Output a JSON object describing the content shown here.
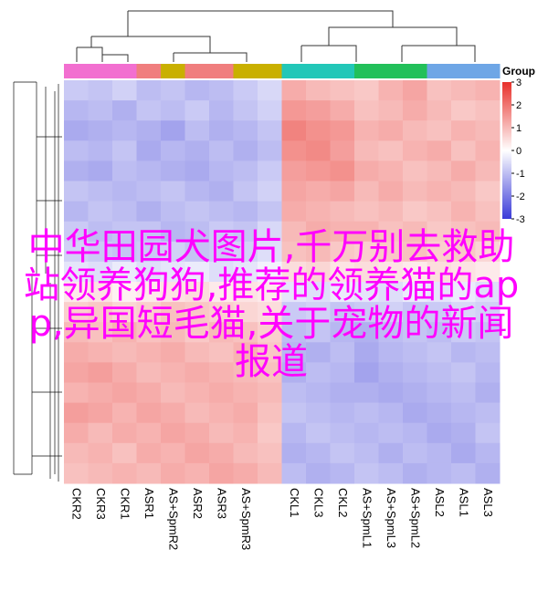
{
  "chart_data": {
    "type": "heatmap",
    "categories": [
      "CKR2",
      "CKR3",
      "CKR1",
      "ASR1",
      "AS+SpmR2",
      "ASR2",
      "ASR3",
      "AS+SpmR3",
      null,
      "CKL1",
      "CKL3",
      "CKL2",
      "AS+SpmL1",
      "AS+SpmL3",
      "AS+SpmL2",
      "ASL2",
      "ASL1",
      "ASL3"
    ],
    "group_colors": [
      "#f26fd0",
      "#f26fd0",
      "#f26fd0",
      "#f07e7e",
      "#c9b000",
      "#f07e7e",
      "#f07e7e",
      "#c9b000",
      "#c9b000",
      "#22c7b8",
      "#22c7b8",
      "#22c7b8",
      "#22c05a",
      "#22c05a",
      "#22c05a",
      "#6ea6e6",
      "#6ea6e6",
      "#6ea6e6"
    ],
    "legend_title": "Group",
    "zlim": [
      -3,
      3
    ],
    "zticks": [
      3,
      2,
      1,
      0,
      -1,
      -2,
      -3
    ],
    "low_color": "#3a3ad8",
    "mid_color": "#ffffff",
    "high_color": "#e8302a",
    "annotation": "中华田园犬图片,千万别去救助站领养狗狗,推荐的领养猫的app,异国短毛猫,关于宠物的新闻报道",
    "values": [
      [
        -0.8,
        -0.9,
        -0.7,
        -1.0,
        -0.9,
        -1.1,
        -1.0,
        -0.8,
        -0.6,
        1.2,
        1.0,
        0.9,
        0.8,
        1.1,
        1.3,
        0.9,
        1.0,
        1.1
      ],
      [
        -1.1,
        -1.0,
        -1.2,
        -0.9,
        -1.0,
        -0.8,
        -1.1,
        -0.9,
        -0.7,
        1.5,
        1.4,
        1.2,
        0.9,
        1.0,
        1.2,
        1.0,
        0.8,
        0.9
      ],
      [
        -1.3,
        -1.2,
        -1.1,
        -1.2,
        -1.4,
        -1.0,
        -1.2,
        -1.1,
        -0.9,
        1.8,
        1.6,
        1.5,
        1.1,
        1.2,
        1.0,
        0.9,
        1.1,
        1.0
      ],
      [
        -1.0,
        -1.1,
        -0.9,
        -1.3,
        -1.1,
        -1.2,
        -1.0,
        -1.2,
        -1.0,
        1.6,
        1.7,
        1.4,
        1.0,
        0.9,
        1.1,
        1.2,
        0.9,
        1.1
      ],
      [
        -1.2,
        -1.3,
        -1.0,
        -1.1,
        -1.2,
        -1.3,
        -1.1,
        -1.0,
        -0.8,
        1.4,
        1.5,
        1.6,
        1.2,
        1.1,
        0.9,
        1.0,
        1.2,
        1.0
      ],
      [
        -0.9,
        -1.0,
        -1.1,
        -1.0,
        -0.9,
        -1.1,
        -1.2,
        -0.9,
        -0.7,
        1.3,
        1.2,
        1.3,
        1.0,
        1.2,
        1.0,
        1.1,
        1.0,
        0.8
      ],
      [
        -1.1,
        -0.9,
        -1.0,
        -1.2,
        -1.0,
        -0.9,
        -1.0,
        -1.1,
        -0.9,
        1.2,
        1.1,
        1.0,
        0.9,
        1.0,
        0.8,
        0.9,
        1.1,
        0.9
      ],
      [
        -0.8,
        -1.0,
        -0.9,
        -0.9,
        -1.1,
        -1.0,
        -0.8,
        -0.9,
        -0.6,
        1.0,
        1.2,
        1.1,
        1.1,
        0.9,
        1.0,
        0.8,
        0.9,
        1.0
      ],
      [
        -0.7,
        -0.8,
        -0.9,
        -0.8,
        -0.7,
        -0.9,
        -0.8,
        -0.7,
        -0.5,
        0.9,
        1.0,
        0.8,
        0.7,
        0.8,
        0.9,
        0.7,
        0.8,
        0.6
      ],
      [
        -0.4,
        -0.5,
        -0.3,
        -0.5,
        -0.4,
        -0.3,
        -0.5,
        -0.4,
        -0.2,
        0.5,
        0.6,
        0.4,
        0.5,
        0.4,
        0.3,
        0.5,
        0.4,
        0.3
      ],
      [
        0.3,
        0.4,
        0.2,
        0.3,
        0.4,
        0.5,
        0.3,
        0.4,
        0.3,
        -0.4,
        -0.5,
        -0.3,
        -0.4,
        -0.5,
        -0.3,
        -0.4,
        -0.3,
        -0.5
      ],
      [
        0.7,
        0.8,
        0.6,
        0.7,
        0.9,
        0.8,
        0.7,
        0.6,
        0.5,
        -0.8,
        -0.7,
        -0.9,
        -0.8,
        -0.7,
        -0.9,
        -0.8,
        -0.6,
        -0.7
      ],
      [
        1.0,
        0.9,
        1.1,
        0.9,
        1.0,
        0.8,
        1.0,
        0.9,
        0.7,
        -1.0,
        -0.9,
        -1.1,
        -1.2,
        -1.0,
        -0.9,
        -1.0,
        -0.8,
        -0.9
      ],
      [
        1.2,
        1.1,
        1.0,
        1.1,
        1.2,
        1.0,
        0.9,
        1.1,
        0.8,
        -1.1,
        -1.2,
        -1.0,
        -1.3,
        -1.1,
        -1.0,
        -0.9,
        -1.1,
        -1.0
      ],
      [
        1.3,
        1.4,
        1.2,
        1.0,
        1.1,
        1.2,
        1.1,
        1.0,
        0.9,
        -1.2,
        -1.0,
        -1.1,
        -1.4,
        -1.2,
        -1.1,
        -1.0,
        -0.9,
        -1.1
      ],
      [
        1.1,
        1.2,
        1.3,
        1.2,
        1.0,
        1.1,
        1.2,
        1.1,
        1.0,
        -1.0,
        -1.1,
        -1.2,
        -1.2,
        -1.3,
        -1.2,
        -1.1,
        -1.0,
        -1.2
      ],
      [
        1.4,
        1.3,
        1.1,
        1.3,
        1.2,
        1.0,
        1.1,
        1.2,
        0.9,
        -0.9,
        -1.0,
        -1.1,
        -1.0,
        -1.1,
        -1.3,
        -1.2,
        -1.1,
        -1.0
      ],
      [
        1.2,
        1.0,
        1.2,
        1.1,
        1.3,
        1.2,
        1.0,
        1.1,
        0.8,
        -1.1,
        -0.9,
        -1.0,
        -1.1,
        -1.0,
        -1.1,
        -1.3,
        -1.2,
        -0.9
      ],
      [
        1.0,
        1.1,
        0.9,
        1.2,
        1.1,
        1.3,
        1.2,
        1.0,
        0.9,
        -1.2,
        -1.1,
        -0.9,
        -1.0,
        -1.2,
        -1.0,
        -1.1,
        -1.3,
        -1.1
      ],
      [
        0.9,
        1.0,
        1.1,
        1.0,
        1.2,
        1.1,
        1.3,
        1.2,
        1.0,
        -1.0,
        -1.2,
        -1.1,
        -0.9,
        -1.0,
        -1.2,
        -1.1,
        -1.0,
        -1.2
      ]
    ]
  }
}
